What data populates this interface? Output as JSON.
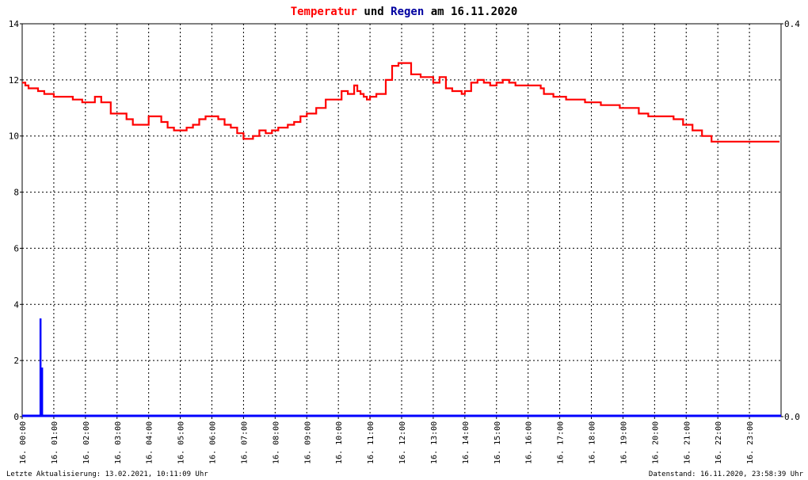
{
  "chart_data": {
    "type": "line",
    "title_parts": [
      {
        "text": "Temperatur",
        "color": "#ff0000"
      },
      {
        "text": " und ",
        "color": "#000000"
      },
      {
        "text": "Regen",
        "color": "#0000a0"
      },
      {
        "text": " am 16.11.2020",
        "color": "#000000"
      }
    ],
    "x_ticks": [
      "16. 00:00",
      "16. 01:00",
      "16. 02:00",
      "16. 03:00",
      "16. 04:00",
      "16. 05:00",
      "16. 06:00",
      "16. 07:00",
      "16. 08:00",
      "16. 09:00",
      "16. 10:00",
      "16. 11:00",
      "16. 12:00",
      "16. 13:00",
      "16. 14:00",
      "16. 15:00",
      "16. 16:00",
      "16. 17:00",
      "16. 18:00",
      "16. 19:00",
      "16. 20:00",
      "16. 21:00",
      "16. 22:00",
      "16. 23:00"
    ],
    "x_range_hours": [
      0,
      24
    ],
    "y_left": {
      "ticks": [
        "0",
        "2",
        "4",
        "6",
        "8",
        "10",
        "12",
        "14"
      ],
      "min": 0,
      "max": 14
    },
    "y_right": {
      "ticks": [
        "0.0",
        "0.4"
      ],
      "min": 0,
      "max": 0.4
    },
    "grid": true,
    "series": [
      {
        "name": "Temperatur",
        "color": "#ff0000",
        "axis": "left",
        "x_hours": [
          0.0,
          0.1,
          0.2,
          0.3,
          0.5,
          0.7,
          1.0,
          1.3,
          1.6,
          1.9,
          2.1,
          2.3,
          2.5,
          2.8,
          3.0,
          3.1,
          3.3,
          3.5,
          3.8,
          4.0,
          4.2,
          4.4,
          4.6,
          4.8,
          5.0,
          5.2,
          5.4,
          5.6,
          5.8,
          6.0,
          6.2,
          6.4,
          6.6,
          6.8,
          7.0,
          7.1,
          7.3,
          7.5,
          7.7,
          7.9,
          8.1,
          8.4,
          8.6,
          8.8,
          9.0,
          9.3,
          9.6,
          9.9,
          10.1,
          10.3,
          10.5,
          10.6,
          10.7,
          10.8,
          10.9,
          11.0,
          11.2,
          11.5,
          11.7,
          11.9,
          12.0,
          12.1,
          12.2,
          12.3,
          12.6,
          12.8,
          13.0,
          13.2,
          13.4,
          13.6,
          13.8,
          13.9,
          14.0,
          14.2,
          14.4,
          14.6,
          14.8,
          15.0,
          15.2,
          15.4,
          15.6,
          15.8,
          16.0,
          16.2,
          16.4,
          16.5,
          16.6,
          16.8,
          17.0,
          17.2,
          17.5,
          17.8,
          18.0,
          18.3,
          18.6,
          18.9,
          19.2,
          19.5,
          19.8,
          20.0,
          20.3,
          20.6,
          20.9,
          21.2,
          21.5,
          21.8,
          22.0,
          22.3,
          22.6,
          22.9,
          23.2,
          23.4,
          23.6,
          23.8,
          23.95
        ],
        "values": [
          11.9,
          11.8,
          11.7,
          11.7,
          11.6,
          11.5,
          11.4,
          11.4,
          11.3,
          11.2,
          11.2,
          11.4,
          11.2,
          10.8,
          10.8,
          10.8,
          10.6,
          10.4,
          10.4,
          10.7,
          10.7,
          10.5,
          10.3,
          10.2,
          10.2,
          10.3,
          10.4,
          10.6,
          10.7,
          10.7,
          10.6,
          10.4,
          10.3,
          10.1,
          9.9,
          9.9,
          10.0,
          10.2,
          10.1,
          10.2,
          10.3,
          10.4,
          10.5,
          10.7,
          10.8,
          11.0,
          11.3,
          11.3,
          11.6,
          11.5,
          11.8,
          11.6,
          11.5,
          11.4,
          11.3,
          11.4,
          11.5,
          12.0,
          12.5,
          12.6,
          12.6,
          12.6,
          12.6,
          12.2,
          12.1,
          12.1,
          11.9,
          12.1,
          11.7,
          11.6,
          11.6,
          11.5,
          11.6,
          11.9,
          12.0,
          11.9,
          11.8,
          11.9,
          12.0,
          11.9,
          11.8,
          11.8,
          11.8,
          11.8,
          11.7,
          11.5,
          11.5,
          11.4,
          11.4,
          11.3,
          11.3,
          11.2,
          11.2,
          11.1,
          11.1,
          11.0,
          11.0,
          10.8,
          10.7,
          10.7,
          10.7,
          10.6,
          10.4,
          10.2,
          10.0,
          9.8,
          9.8,
          9.8,
          9.8,
          9.8,
          9.8,
          9.8,
          9.8,
          9.8,
          9.8
        ]
      },
      {
        "name": "Regen",
        "color": "#0000ff",
        "axis": "right",
        "bars_x_hours": [
          0.58,
          0.63
        ],
        "bars_values": [
          0.1,
          0.05
        ]
      }
    ]
  },
  "footer": {
    "left": "Letzte Aktualisierung: 13.02.2021, 10:11:09 Uhr",
    "right": "Datenstand: 16.11.2020, 23:58:39 Uhr"
  }
}
